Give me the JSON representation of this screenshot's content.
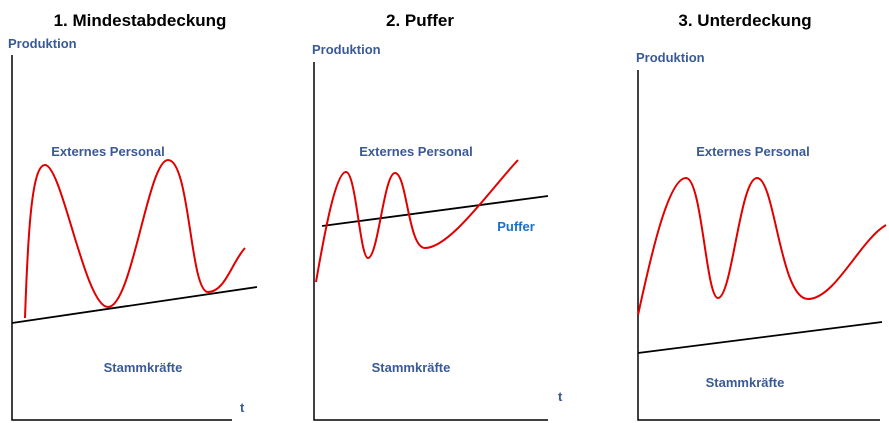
{
  "panels": [
    {
      "title": "1. Mindestabdeckung",
      "y_label": "Produktion",
      "upper_label": "Externes Personal",
      "lower_label": "Stammkräfte",
      "x_label": "t"
    },
    {
      "title": "2. Puffer",
      "y_label": "Produktion",
      "upper_label": "Externes Personal",
      "buffer_label": "Puffer",
      "lower_label": "Stammkräfte",
      "x_label": "t"
    },
    {
      "title": "3. Unterdeckung",
      "y_label": "Produktion",
      "upper_label": "Externes Personal",
      "lower_label": "Stammkräfte"
    }
  ]
}
